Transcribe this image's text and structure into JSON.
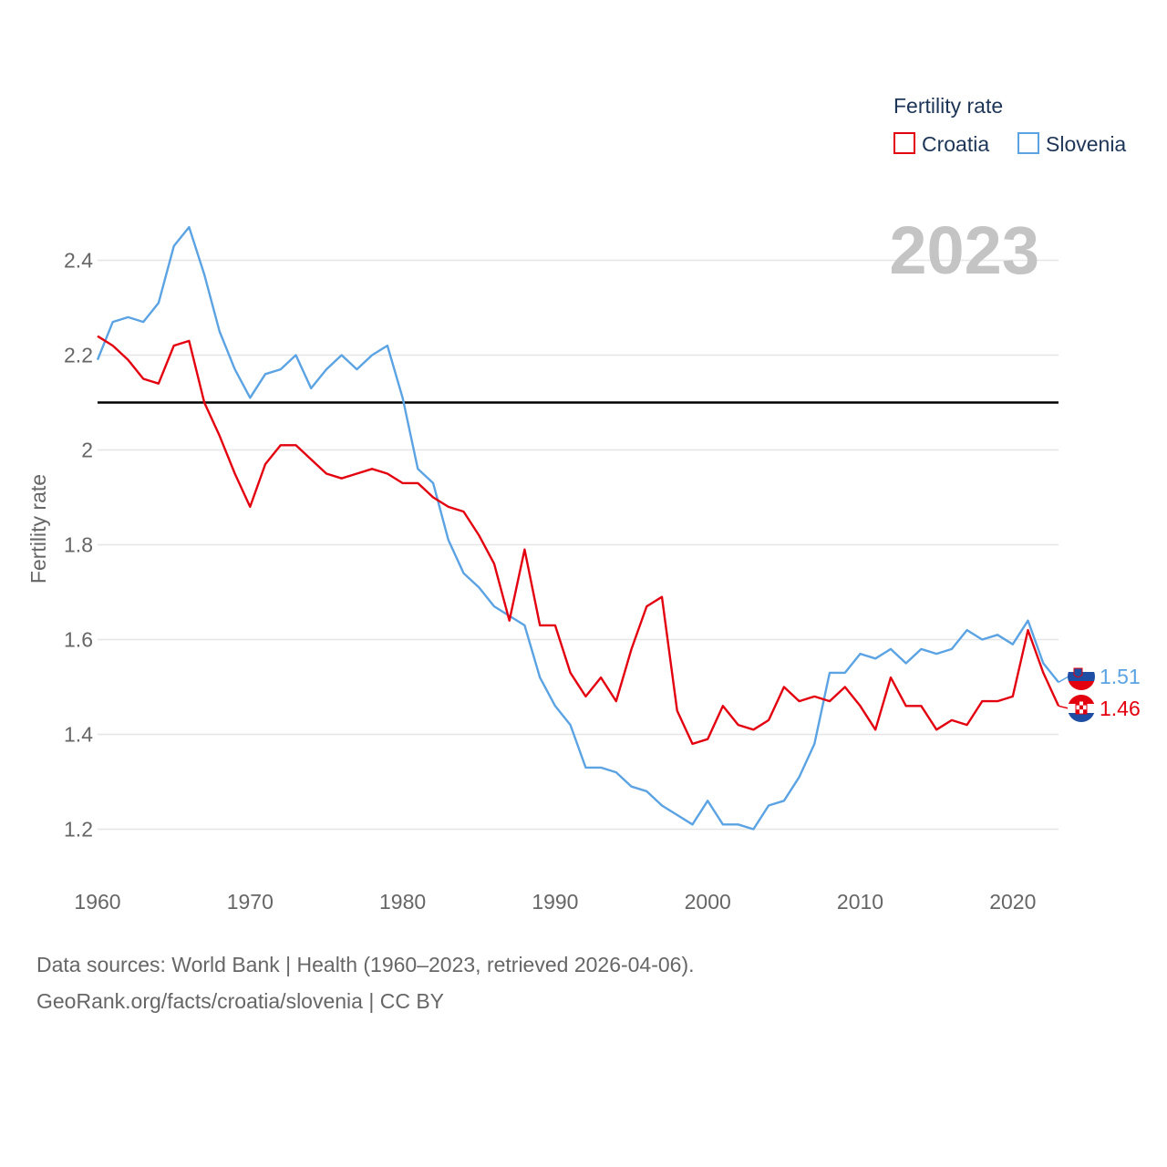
{
  "chart_data": {
    "type": "line",
    "title": "",
    "year_label": "2023",
    "ylabel": "Fertility rate",
    "xlabel": "",
    "xlim": [
      1960,
      2023
    ],
    "ylim": [
      1.1,
      2.5
    ],
    "x_ticks": [
      1960,
      1970,
      1980,
      1990,
      2000,
      2010,
      2020
    ],
    "x_tick_labels": [
      "1960",
      "1970",
      "1980",
      "1990",
      "2000",
      "2010",
      "2020"
    ],
    "y_ticks": [
      1.2,
      1.4,
      1.6,
      1.8,
      2.0,
      2.2,
      2.4
    ],
    "y_tick_labels": [
      "1.2",
      "1.4",
      "1.6",
      "1.8",
      "2",
      "2.2",
      "2.4"
    ],
    "grid": true,
    "reference_line": {
      "value": 2.1,
      "color": "#000000"
    },
    "legend": {
      "title": "Fertility rate",
      "placement": "top-right"
    },
    "x": [
      1960,
      1961,
      1962,
      1963,
      1964,
      1965,
      1966,
      1967,
      1968,
      1969,
      1970,
      1971,
      1972,
      1973,
      1974,
      1975,
      1976,
      1977,
      1978,
      1979,
      1980,
      1981,
      1982,
      1983,
      1984,
      1985,
      1986,
      1987,
      1988,
      1989,
      1990,
      1991,
      1992,
      1993,
      1994,
      1995,
      1996,
      1997,
      1998,
      1999,
      2000,
      2001,
      2002,
      2003,
      2004,
      2005,
      2006,
      2007,
      2008,
      2009,
      2010,
      2011,
      2012,
      2013,
      2014,
      2015,
      2016,
      2017,
      2018,
      2019,
      2020,
      2021,
      2022,
      2023
    ],
    "series": [
      {
        "name": "Croatia",
        "color": "#e3000f",
        "end_label": "1.46",
        "values": [
          2.24,
          2.22,
          2.19,
          2.15,
          2.14,
          2.22,
          2.23,
          2.1,
          2.03,
          1.95,
          1.88,
          1.97,
          2.01,
          2.01,
          1.98,
          1.95,
          1.94,
          1.95,
          1.96,
          1.95,
          1.93,
          1.93,
          1.9,
          1.88,
          1.87,
          1.82,
          1.76,
          1.64,
          1.79,
          1.63,
          1.63,
          1.53,
          1.48,
          1.52,
          1.47,
          1.58,
          1.67,
          1.69,
          1.45,
          1.38,
          1.39,
          1.46,
          1.42,
          1.41,
          1.43,
          1.5,
          1.47,
          1.48,
          1.47,
          1.5,
          1.46,
          1.41,
          1.52,
          1.46,
          1.46,
          1.41,
          1.43,
          1.42,
          1.47,
          1.47,
          1.48,
          1.62,
          1.53,
          1.46
        ]
      },
      {
        "name": "Slovenia",
        "color": "#5ba3e3",
        "end_label": "1.51",
        "values": [
          2.19,
          2.27,
          2.28,
          2.27,
          2.31,
          2.43,
          2.47,
          2.37,
          2.25,
          2.17,
          2.11,
          2.16,
          2.17,
          2.2,
          2.13,
          2.17,
          2.2,
          2.17,
          2.2,
          2.22,
          2.11,
          1.96,
          1.93,
          1.81,
          1.74,
          1.71,
          1.67,
          1.65,
          1.63,
          1.52,
          1.46,
          1.42,
          1.33,
          1.33,
          1.32,
          1.29,
          1.28,
          1.25,
          1.23,
          1.21,
          1.26,
          1.21,
          1.21,
          1.2,
          1.25,
          1.26,
          1.31,
          1.38,
          1.53,
          1.53,
          1.57,
          1.56,
          1.58,
          1.55,
          1.58,
          1.57,
          1.58,
          1.62,
          1.6,
          1.61,
          1.59,
          1.64,
          1.55,
          1.51
        ]
      }
    ]
  },
  "colors": {
    "grid": "#e6e6e6",
    "axis_text": "#666666",
    "legend_text": "#1d3557",
    "year_watermark": "#c4c4c4"
  },
  "source": {
    "line1": "Data sources: World Bank | Health (1960–2023, retrieved 2026-04-06).",
    "line2": "GeoRank.org/facts/croatia/slovenia | CC BY"
  }
}
